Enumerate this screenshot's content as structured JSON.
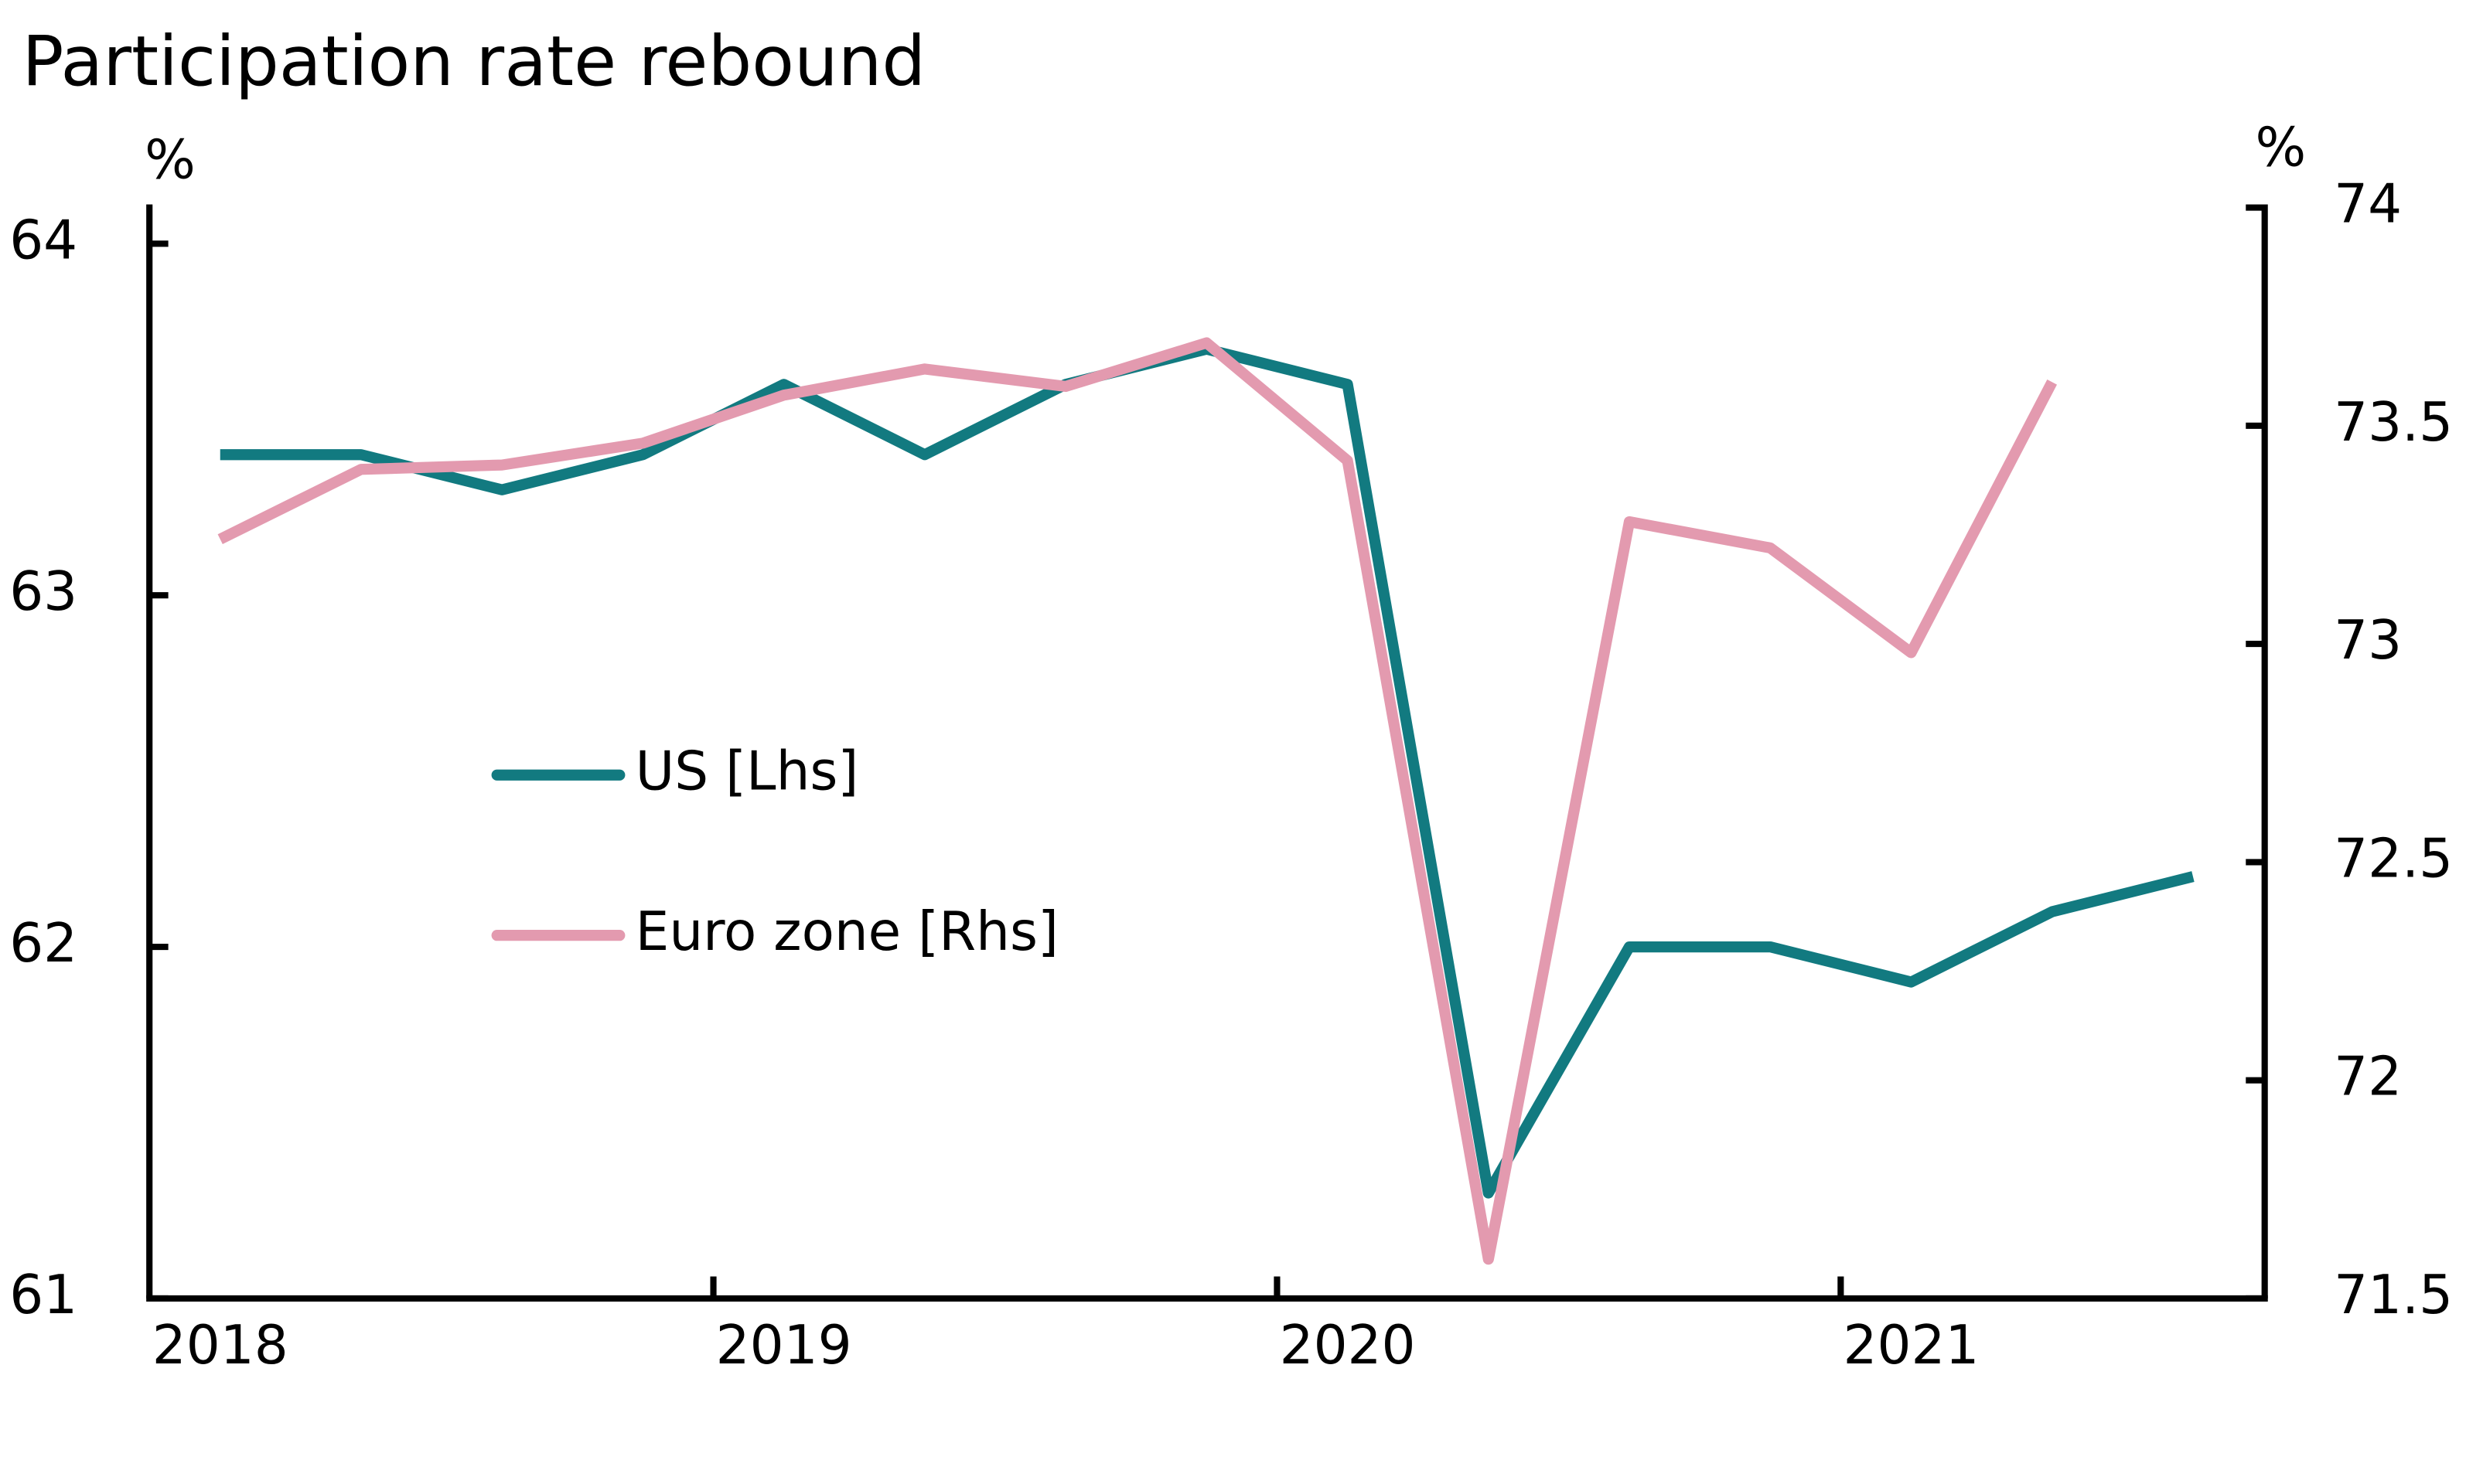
{
  "chart_data": {
    "type": "line",
    "title": "Participation rate rebound",
    "y_unit": "%",
    "y2_unit": "%",
    "categories": [
      "2018",
      null,
      null,
      null,
      "2019",
      null,
      null,
      null,
      "2020",
      null,
      null,
      null,
      "2021",
      null,
      null
    ],
    "series": [
      {
        "name": "US [Lhs]",
        "color": "#127a80",
        "values": [
          63.4,
          63.4,
          63.3,
          63.4,
          63.6,
          63.4,
          63.6,
          63.7,
          63.6,
          61.3,
          62.0,
          62.0,
          61.9,
          62.1,
          62.2
        ]
      },
      {
        "name": "Euro zone [Rhs]",
        "color": "#e39aaf",
        "axis": "y2",
        "values": [
          73.24,
          73.4,
          73.41,
          73.46,
          73.57,
          73.63,
          73.59,
          73.69,
          73.42,
          71.59,
          73.28,
          73.22,
          72.98,
          73.6,
          null
        ]
      }
    ],
    "ylim": [
      61,
      64
    ],
    "yticks": [
      61,
      62,
      63,
      64
    ],
    "y2lim": [
      71.5,
      74
    ],
    "y2ticks": [
      {
        "value": 71.5,
        "label": "71.5"
      },
      72,
      {
        "value": 72.5,
        "label": "72.5"
      },
      73,
      {
        "value": 73.5,
        "label": "73.5"
      },
      74
    ]
  }
}
